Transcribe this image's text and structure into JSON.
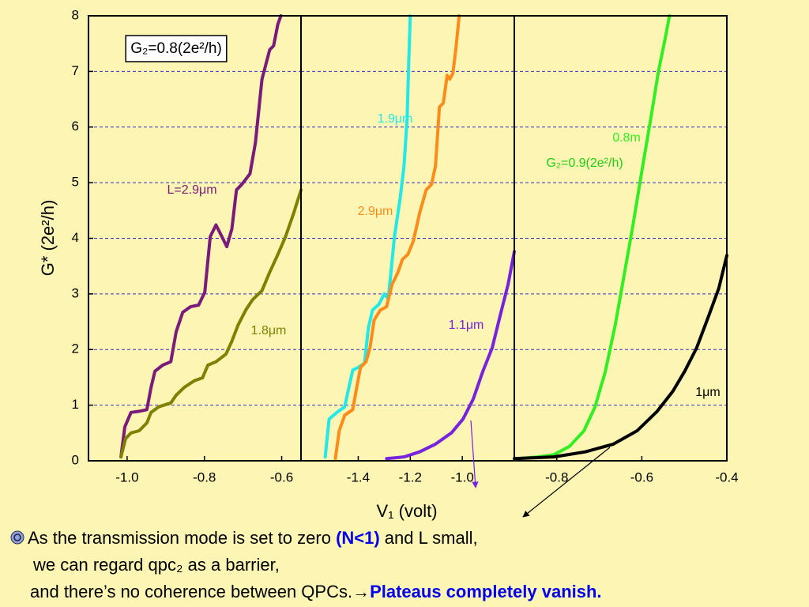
{
  "chart_data": [
    {
      "type": "line",
      "y_label": "G* (2e²/h)",
      "annotation": "G₂=0.8(2e²/h)",
      "annotation_boxed": true,
      "xlim": [
        -1.1,
        -0.55
      ],
      "xticks": [
        {
          "value": -1,
          "label": "-1.0"
        },
        -0.8,
        -0.6
      ],
      "ylim": [
        0,
        8
      ],
      "yticks": [
        0,
        1,
        2,
        3,
        4,
        5,
        6,
        7,
        8
      ],
      "grid": true,
      "series": [
        {
          "name": "L=2.9μm",
          "color": "#7a1a7a",
          "x": [
            -1.016,
            -1.006,
            -0.99,
            -0.969,
            -0.949,
            -0.938,
            -0.928,
            -0.908,
            -0.887,
            -0.873,
            -0.856,
            -0.836,
            -0.815,
            -0.799,
            -0.785,
            -0.77,
            -0.754,
            -0.742,
            -0.729,
            -0.717,
            -0.703,
            -0.682,
            -0.668,
            -0.651,
            -0.631,
            -0.621,
            -0.61,
            -0.602
          ],
          "values": [
            0.07,
            0.61,
            0.87,
            0.89,
            0.92,
            1.32,
            1.61,
            1.72,
            1.78,
            2.32,
            2.67,
            2.77,
            2.8,
            3.03,
            4.03,
            4.24,
            4.02,
            3.85,
            4.17,
            4.87,
            4.97,
            5.16,
            5.72,
            6.86,
            7.39,
            7.46,
            7.85,
            8
          ]
        },
        {
          "name": "1.8μm",
          "color": "#808000",
          "x": [
            -1.016,
            -1.004,
            -0.99,
            -0.969,
            -0.949,
            -0.938,
            -0.918,
            -0.887,
            -0.873,
            -0.852,
            -0.826,
            -0.805,
            -0.791,
            -0.77,
            -0.744,
            -0.729,
            -0.713,
            -0.692,
            -0.676,
            -0.651,
            -0.631,
            -0.61,
            -0.59,
            -0.569,
            -0.55
          ],
          "values": [
            0.07,
            0.4,
            0.5,
            0.54,
            0.68,
            0.87,
            0.97,
            1.04,
            1.18,
            1.32,
            1.44,
            1.49,
            1.72,
            1.78,
            1.92,
            2.15,
            2.44,
            2.72,
            2.89,
            3.06,
            3.39,
            3.71,
            4.03,
            4.45,
            4.87
          ]
        }
      ]
    },
    {
      "type": "line",
      "x_label": "V₁ (volt)",
      "xlim": [
        -1.62,
        -0.8
      ],
      "xticks": [
        -1.4,
        -1.2,
        {
          "value": -1,
          "label": "-1.0"
        }
      ],
      "ylim": [
        0,
        8
      ],
      "yticks": [
        0,
        1,
        2,
        3,
        4,
        5,
        6,
        7,
        8
      ],
      "grid": true,
      "series": [
        {
          "name": "1.9μm",
          "color": "#22e8e8",
          "x": [
            -1.527,
            -1.512,
            -1.482,
            -1.452,
            -1.436,
            -1.421,
            -1.4,
            -1.376,
            -1.361,
            -1.345,
            -1.321,
            -1.3,
            -1.285,
            -1.276,
            -1.261,
            -1.239,
            -1.224,
            -1.212,
            -1.206,
            -1.2
          ],
          "values": [
            0.07,
            0.75,
            0.87,
            0.97,
            1.32,
            1.63,
            1.68,
            1.75,
            2.39,
            2.71,
            2.81,
            3,
            2.91,
            3.31,
            4.02,
            4.72,
            5.3,
            6.15,
            7.14,
            8
          ]
        },
        {
          "name": "2.9μm",
          "color": "#ff8c1a",
          "x": [
            -1.488,
            -1.473,
            -1.452,
            -1.421,
            -1.406,
            -1.391,
            -1.37,
            -1.355,
            -1.339,
            -1.315,
            -1.291,
            -1.27,
            -1.248,
            -1.23,
            -1.209,
            -1.188,
            -1.164,
            -1.139,
            -1.118,
            -1.103,
            -1.088,
            -1.073,
            -1.058,
            -1.048,
            -1.036,
            -1.024,
            -1.012
          ],
          "values": [
            0.04,
            0.54,
            0.82,
            0.92,
            1.32,
            1.68,
            1.78,
            2.03,
            2.53,
            2.71,
            2.77,
            3.17,
            3.38,
            3.62,
            3.71,
            3.95,
            4.45,
            4.87,
            4.97,
            5.3,
            6.36,
            6.43,
            6.93,
            6.86,
            6.97,
            7.43,
            8
          ]
        },
        {
          "name": "1.1μm",
          "color": "#7722dd",
          "x": [
            -1.291,
            -1.224,
            -1.164,
            -1.103,
            -1.042,
            -0.997,
            -0.958,
            -0.921,
            -0.885,
            -0.855,
            -0.824,
            -0.8
          ],
          "values": [
            0.04,
            0.07,
            0.16,
            0.3,
            0.5,
            0.75,
            1.11,
            1.61,
            2.03,
            2.6,
            3.17,
            3.76
          ]
        }
      ]
    },
    {
      "type": "line",
      "annotation": "G₂=0.9(2e²/h)",
      "annotation_boxed": false,
      "xlim": [
        -0.9,
        -0.4
      ],
      "xticks": [
        -0.8,
        -0.6,
        -0.4
      ],
      "ylim": [
        0,
        8
      ],
      "yticks": [
        0,
        1,
        2,
        3,
        4,
        5,
        6,
        7,
        8
      ],
      "grid": true,
      "series": [
        {
          "name": "0.8m",
          "color": "#33ee22",
          "x": [
            -0.892,
            -0.845,
            -0.807,
            -0.77,
            -0.736,
            -0.71,
            -0.686,
            -0.662,
            -0.639,
            -0.621,
            -0.598,
            -0.579,
            -0.561,
            -0.546,
            -0.535
          ],
          "values": [
            0.04,
            0.07,
            0.11,
            0.26,
            0.54,
            0.97,
            1.6,
            2.46,
            3.45,
            4.23,
            5.3,
            6.15,
            7,
            7.56,
            8
          ]
        },
        {
          "name": "1μm",
          "color": "#000000",
          "x": [
            -0.9,
            -0.807,
            -0.733,
            -0.667,
            -0.611,
            -0.564,
            -0.527,
            -0.499,
            -0.471,
            -0.443,
            -0.419,
            -0.4
          ],
          "values": [
            0.04,
            0.07,
            0.16,
            0.3,
            0.54,
            0.89,
            1.25,
            1.61,
            2.03,
            2.6,
            3.1,
            3.69
          ]
        }
      ]
    }
  ],
  "notes": {
    "lines": [
      [
        {
          "text": "As the transmission mode is set to zero "
        },
        {
          "text": "(N<1)",
          "color": "#0000ee",
          "bold": true
        },
        {
          "text": " and L small,"
        }
      ],
      [
        {
          "text": "we can regard qpc₂ as a barrier,"
        }
      ],
      [
        {
          "text": "and there’s no coherence between QPCs."
        },
        {
          "text": "→"
        },
        {
          "text": "Plateaus completely vanish.",
          "color": "#0000ee",
          "bold": true
        }
      ]
    ]
  }
}
